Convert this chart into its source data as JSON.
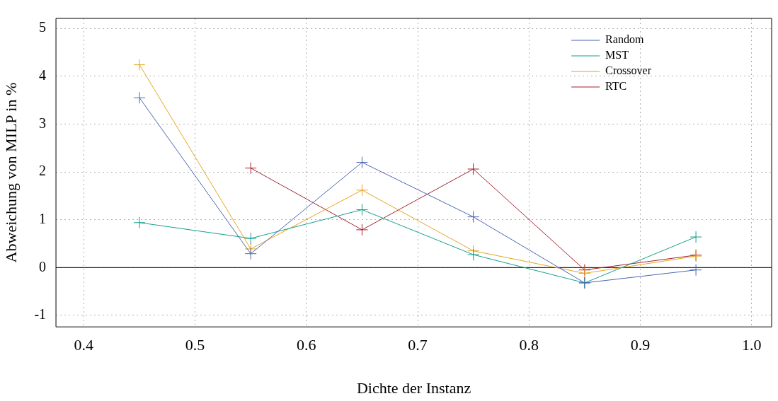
{
  "chart_data": {
    "type": "line",
    "xlabel": "Dichte der Instanz",
    "ylabel": "Abweichung von MILP in %",
    "x": [
      0.45,
      0.55,
      0.65,
      0.75,
      0.85,
      0.95
    ],
    "series": [
      {
        "name": "Random",
        "color": "#4a65b0",
        "values": [
          3.55,
          0.29,
          2.2,
          1.06,
          -0.32,
          -0.05
        ]
      },
      {
        "name": "MST",
        "color": "#13a08a",
        "values": [
          0.94,
          0.61,
          1.21,
          0.27,
          -0.32,
          0.64
        ]
      },
      {
        "name": "Crossover",
        "color": "#e5a41d",
        "values": [
          4.24,
          0.39,
          1.62,
          0.35,
          -0.12,
          0.24
        ]
      },
      {
        "name": "RTC",
        "color": "#a8202c",
        "values": [
          null,
          2.08,
          0.79,
          2.06,
          -0.05,
          0.26
        ]
      }
    ],
    "xlim": [
      0.375,
      1.018
    ],
    "xticks": [
      0.4,
      0.5,
      0.6,
      0.7,
      0.8,
      0.9,
      {
        "value": 1,
        "label": "1.0"
      }
    ],
    "ylim": [
      -1.24,
      5.21
    ],
    "yticks": [
      -1,
      0,
      1,
      2,
      3,
      4,
      5
    ],
    "ref_lines": [
      {
        "axis": "y",
        "value": 0,
        "color": "#000000"
      }
    ],
    "grid": true,
    "legend": "top right",
    "marker": "cross",
    "line_style": "solid"
  }
}
